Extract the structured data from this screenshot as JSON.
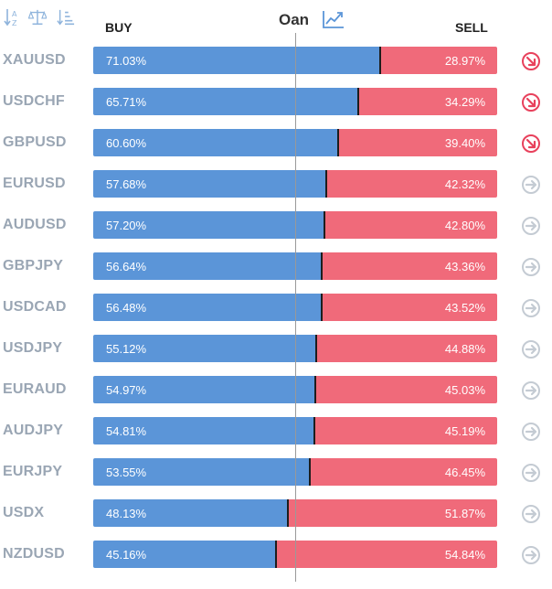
{
  "header": {
    "buy_label": "BUY",
    "sell_label": "SELL",
    "title": "Oan"
  },
  "toolbar": {
    "icons": [
      "sort-alpha-icon",
      "balance-icon",
      "sort-desc-icon"
    ]
  },
  "colors": {
    "buy": "#5b95d8",
    "sell": "#f06a7a",
    "signal_bearish": "#e8415c",
    "signal_neutral": "#c4cbd3"
  },
  "rows": [
    {
      "symbol": "XAUUSD",
      "buy": "71.03%",
      "sell": "28.97%",
      "signal": "bearish"
    },
    {
      "symbol": "USDCHF",
      "buy": "65.71%",
      "sell": "34.29%",
      "signal": "bearish"
    },
    {
      "symbol": "GBPUSD",
      "buy": "60.60%",
      "sell": "39.40%",
      "signal": "bearish"
    },
    {
      "symbol": "EURUSD",
      "buy": "57.68%",
      "sell": "42.32%",
      "signal": "neutral"
    },
    {
      "symbol": "AUDUSD",
      "buy": "57.20%",
      "sell": "42.80%",
      "signal": "neutral"
    },
    {
      "symbol": "GBPJPY",
      "buy": "56.64%",
      "sell": "43.36%",
      "signal": "neutral"
    },
    {
      "symbol": "USDCAD",
      "buy": "56.48%",
      "sell": "43.52%",
      "signal": "neutral"
    },
    {
      "symbol": "USDJPY",
      "buy": "55.12%",
      "sell": "44.88%",
      "signal": "neutral"
    },
    {
      "symbol": "EURAUD",
      "buy": "54.97%",
      "sell": "45.03%",
      "signal": "neutral"
    },
    {
      "symbol": "AUDJPY",
      "buy": "54.81%",
      "sell": "45.19%",
      "signal": "neutral"
    },
    {
      "symbol": "EURJPY",
      "buy": "53.55%",
      "sell": "46.45%",
      "signal": "neutral"
    },
    {
      "symbol": "USDX",
      "buy": "48.13%",
      "sell": "51.87%",
      "signal": "neutral"
    },
    {
      "symbol": "NZDUSD",
      "buy": "45.16%",
      "sell": "54.84%",
      "signal": "neutral"
    }
  ]
}
